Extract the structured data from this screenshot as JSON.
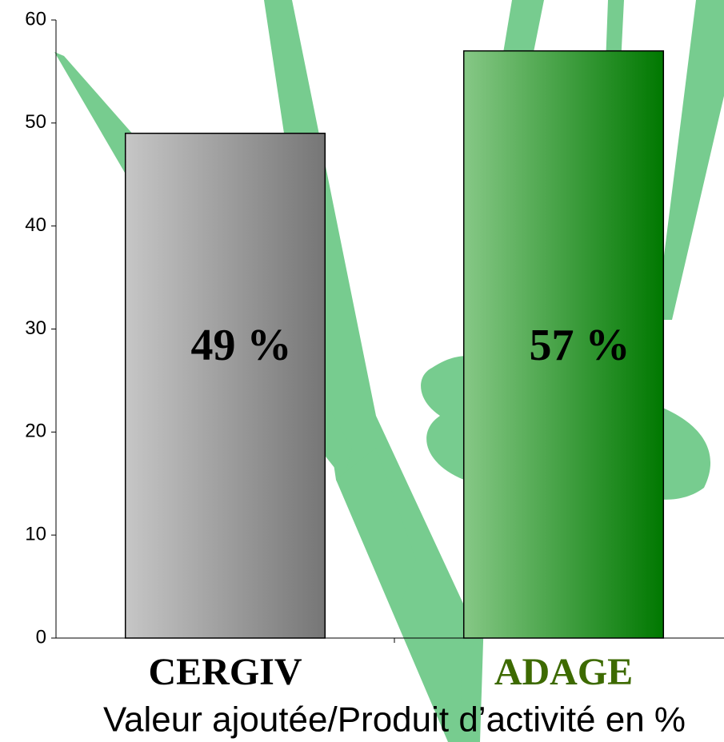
{
  "chart_data": {
    "type": "bar",
    "categories": [
      "CERGIV",
      "ADAGE"
    ],
    "values": [
      49,
      57
    ],
    "value_labels": [
      "49 %",
      "57 %"
    ],
    "x_label": "Valeur ajoutée/Produit d’activité en %",
    "bar_gradients": [
      [
        "#c6c6c6",
        "#767676"
      ],
      [
        "#86c886",
        "#007800"
      ]
    ],
    "category_colors": [
      "#000000",
      "#3d6a00"
    ],
    "ylim": [
      0,
      60
    ],
    "yticks": [
      0,
      10,
      20,
      30,
      40,
      50,
      60
    ],
    "grid": false
  }
}
